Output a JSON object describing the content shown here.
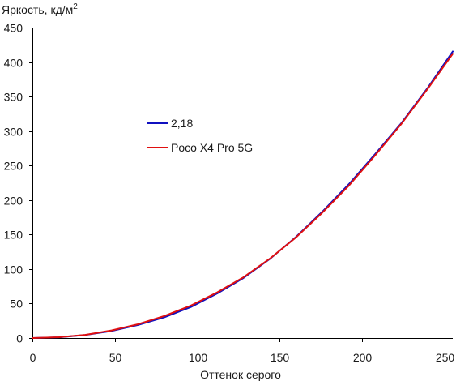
{
  "chart_data": {
    "type": "line",
    "ylabel": "Яркость, кд/м",
    "ylabel_sup": "2",
    "xlabel": "Оттенок серого",
    "xlim": [
      0,
      255
    ],
    "ylim": [
      0,
      450
    ],
    "x_ticks": [
      0,
      50,
      100,
      150,
      200,
      250
    ],
    "y_ticks": [
      0,
      50,
      100,
      150,
      200,
      250,
      300,
      350,
      400,
      450
    ],
    "grid": false,
    "legend_position": "center-left",
    "series": [
      {
        "name": "2,18",
        "color": "#1010c0",
        "x": [
          0,
          16,
          32,
          48,
          64,
          80,
          96,
          112,
          128,
          144,
          160,
          176,
          192,
          208,
          224,
          240,
          255
        ],
        "y": [
          0,
          1.1,
          4.3,
          10.2,
          18.9,
          30.1,
          44.9,
          64.5,
          86.9,
          114.5,
          146.7,
          183.4,
          223.1,
          266.8,
          312.1,
          363.4,
          415.5
        ]
      },
      {
        "name": "Poco X4 Pro 5G",
        "color": "#e01010",
        "x": [
          0,
          16,
          32,
          48,
          64,
          80,
          96,
          112,
          128,
          144,
          160,
          176,
          192,
          208,
          224,
          240,
          255
        ],
        "y": [
          0,
          1.2,
          4.6,
          11.0,
          20.0,
          32.0,
          47.0,
          66.0,
          88.0,
          115.0,
          146.0,
          182.0,
          221.0,
          265.0,
          311.0,
          362.0,
          412.0
        ]
      }
    ]
  }
}
